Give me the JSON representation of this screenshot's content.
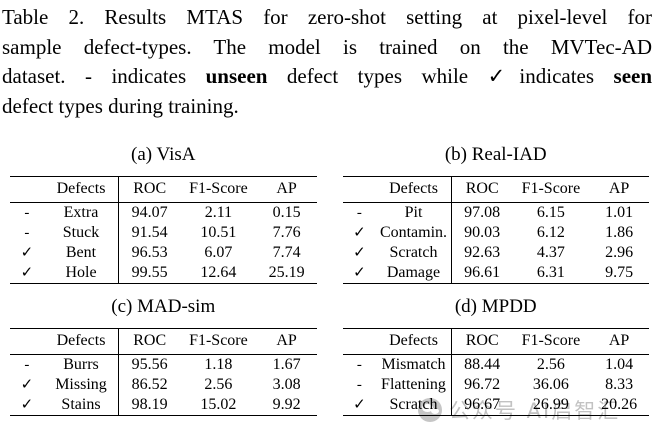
{
  "caption": {
    "line_1": "Table 2. Results MTAS for zero-shot setting at pixel-level for",
    "line_2": "sample defect-types. The model is trained on the MVTec-AD",
    "line_3_part_1": "dataset. - indicates ",
    "line_3_bold_1": "unseen",
    "line_3_part_2": " defect types while ✓indicates ",
    "line_3_bold_2": "seen",
    "line_4": "defect types during training."
  },
  "subtables": [
    {
      "label": "(a) VisA",
      "headers": {
        "defects": "Defects",
        "roc": "ROC",
        "f1": "F1-Score",
        "ap": "AP"
      },
      "rows": [
        {
          "seen": "-",
          "defect": "Extra",
          "roc": "94.07",
          "f1": "2.11",
          "ap": "0.15"
        },
        {
          "seen": "-",
          "defect": "Stuck",
          "roc": "91.54",
          "f1": "10.51",
          "ap": "7.76"
        },
        {
          "seen": "✓",
          "defect": "Bent",
          "roc": "96.53",
          "f1": "6.07",
          "ap": "7.74"
        },
        {
          "seen": "✓",
          "defect": "Hole",
          "roc": "99.55",
          "f1": "12.64",
          "ap": "25.19"
        }
      ]
    },
    {
      "label": "(b) Real-IAD",
      "headers": {
        "defects": "Defects",
        "roc": "ROC",
        "f1": "F1-Score",
        "ap": "AP"
      },
      "rows": [
        {
          "seen": "-",
          "defect": "Pit",
          "roc": "97.08",
          "f1": "6.15",
          "ap": "1.01"
        },
        {
          "seen": "✓",
          "defect": "Contamin.",
          "roc": "90.03",
          "f1": "6.12",
          "ap": "1.86"
        },
        {
          "seen": "✓",
          "defect": "Scratch",
          "roc": "92.63",
          "f1": "4.37",
          "ap": "2.96"
        },
        {
          "seen": "✓",
          "defect": "Damage",
          "roc": "96.61",
          "f1": "6.31",
          "ap": "9.75"
        }
      ]
    },
    {
      "label": "(c) MAD-sim",
      "headers": {
        "defects": "Defects",
        "roc": "ROC",
        "f1": "F1-Score",
        "ap": "AP"
      },
      "rows": [
        {
          "seen": "-",
          "defect": "Burrs",
          "roc": "95.56",
          "f1": "1.18",
          "ap": "1.67"
        },
        {
          "seen": "✓",
          "defect": "Missing",
          "roc": "86.52",
          "f1": "2.56",
          "ap": "3.08"
        },
        {
          "seen": "✓",
          "defect": "Stains",
          "roc": "98.19",
          "f1": "15.02",
          "ap": "9.92"
        }
      ]
    },
    {
      "label": "(d) MPDD",
      "headers": {
        "defects": "Defects",
        "roc": "ROC",
        "f1": "F1-Score",
        "ap": "AP"
      },
      "rows": [
        {
          "seen": "-",
          "defect": "Mismatch",
          "roc": "88.44",
          "f1": "2.56",
          "ap": "1.04"
        },
        {
          "seen": "-",
          "defect": "Flattening",
          "roc": "96.72",
          "f1": "36.06",
          "ap": "8.33"
        },
        {
          "seen": "✓",
          "defect": "Scratch",
          "roc": "96.67",
          "f1": "26.99",
          "ap": "20.26"
        }
      ]
    }
  ],
  "watermark": {
    "text": "公众号 AI启智汇",
    "color": "#c2c2c2"
  }
}
